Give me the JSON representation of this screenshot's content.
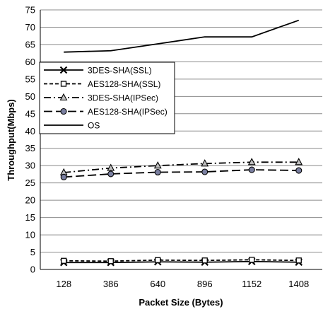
{
  "chart_data": {
    "type": "line",
    "title": "",
    "xlabel": "Packet Size (Bytes)",
    "ylabel": "Throughput(Mbps)",
    "categories": [
      "128",
      "386",
      "640",
      "896",
      "1152",
      "1408"
    ],
    "ylim": [
      0,
      75
    ],
    "yticks": [
      0,
      5,
      10,
      15,
      20,
      25,
      30,
      35,
      40,
      45,
      50,
      55,
      60,
      65,
      70,
      75
    ],
    "grid": true,
    "legend_position": "left-middle",
    "series": [
      {
        "name": "3DES-SHA(SSL)",
        "values": [
          2.0,
          2.0,
          2.2,
          2.1,
          2.3,
          2.1
        ],
        "marker": "x",
        "dash": "solid",
        "color": "#000000"
      },
      {
        "name": "AES128-SHA(SSL)",
        "values": [
          2.5,
          2.4,
          2.7,
          2.6,
          2.8,
          2.6
        ],
        "marker": "square",
        "dash": "dashed",
        "color": "#000000"
      },
      {
        "name": "3DES-SHA(IPSec)",
        "values": [
          28.0,
          29.3,
          30.0,
          30.6,
          31.0,
          31.0
        ],
        "marker": "triangle",
        "dash": "dashdot",
        "color": "#000000"
      },
      {
        "name": "AES128-SHA(IPSec)",
        "values": [
          26.7,
          27.6,
          28.1,
          28.2,
          28.8,
          28.6
        ],
        "marker": "circle",
        "dash": "longdash",
        "color": "#000000"
      },
      {
        "name": "OS",
        "values": [
          62.8,
          63.2,
          65.2,
          67.2,
          67.2,
          72.0
        ],
        "marker": "none",
        "dash": "solid",
        "color": "#000000"
      }
    ]
  }
}
